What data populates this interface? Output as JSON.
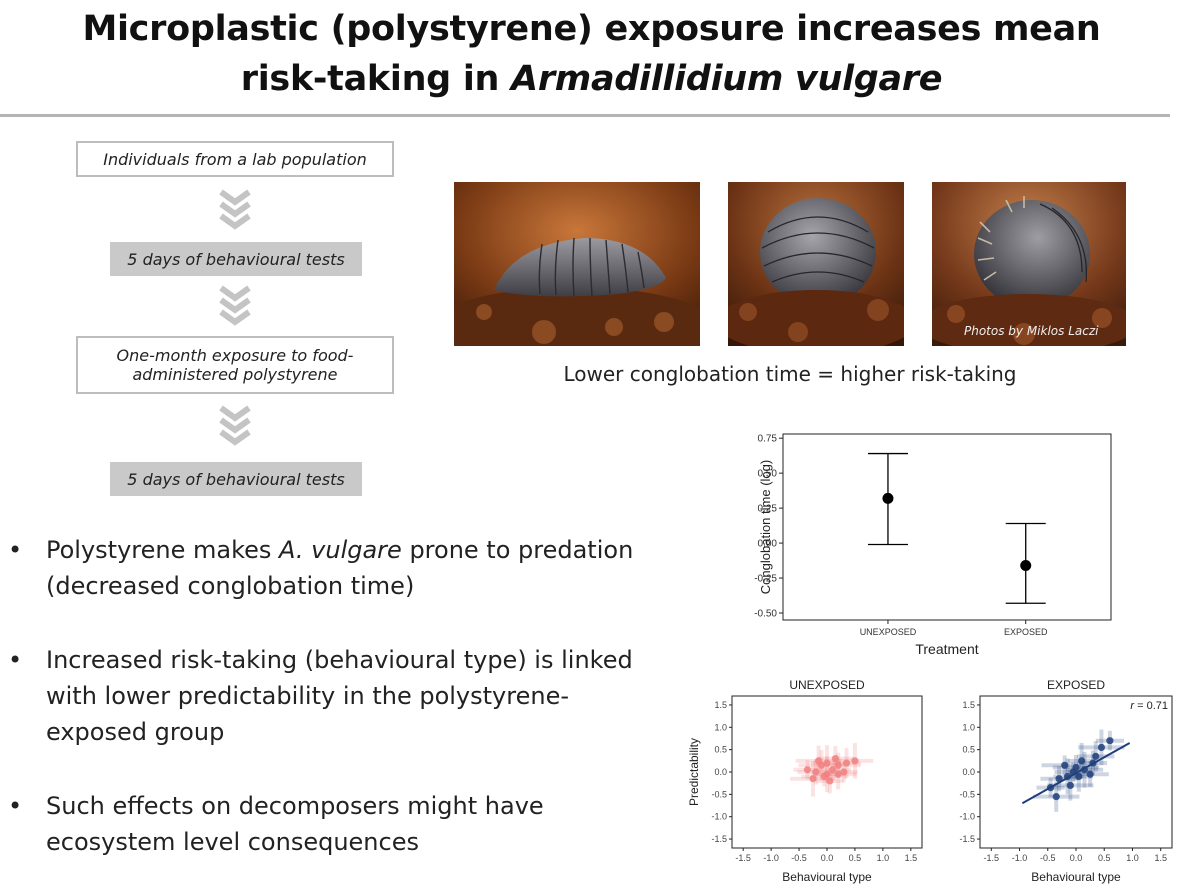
{
  "title": {
    "line1": "Microplastic (polystyrene) exposure increases mean",
    "line2_prefix": "risk-taking in ",
    "line2_species": "Armadillidium vulgare"
  },
  "flow": {
    "step1": "Individuals from a lab population",
    "step2": "5 days of behavioural tests",
    "step3": "One-month exposure to food-administered polystyrene",
    "step4": "5 days of behavioural tests"
  },
  "photos": {
    "credit": "Photos by Miklos Laczi",
    "caption": "Lower conglobation time = higher risk-taking"
  },
  "bullets": [
    {
      "pre": "Polystyrene makes ",
      "italic": "A. vulgare",
      "post": " prone  to predation (decreased conglobation time)"
    },
    {
      "pre": "Increased risk-taking (behavioural type) is linked with lower predictability in the polystyrene-exposed group",
      "italic": "",
      "post": ""
    },
    {
      "pre": "Such effects on decomposers might have ecosystem level consequences",
      "italic": "",
      "post": ""
    }
  ],
  "bullet_symbol": "•",
  "chart_data": [
    {
      "type": "scatter",
      "variant": "point-with-error-bars",
      "xlabel": "Treatment",
      "ylabel": "Conglobation time (log)",
      "categories": [
        "UNEXPOSED",
        "EXPOSED"
      ],
      "values": [
        0.32,
        -0.16
      ],
      "error_low": [
        -0.01,
        -0.43
      ],
      "error_high": [
        0.64,
        0.14
      ],
      "ylim": [
        -0.55,
        0.78
      ],
      "yticks": [
        "0.75",
        "0.50",
        "0.25",
        "0.00",
        "-0.25",
        "-0.50"
      ],
      "ytick_values": [
        0.75,
        0.5,
        0.25,
        0.0,
        -0.25,
        -0.5
      ],
      "grid": false,
      "color": "#000000"
    },
    {
      "type": "scatter",
      "title": "UNEXPOSED",
      "xlabel": "Behavioural type",
      "ylabel": "Predictability",
      "xlim": [
        -1.7,
        1.7
      ],
      "ylim": [
        -1.7,
        1.7
      ],
      "ticks": [
        "-1.5",
        "-1.0",
        "-0.5",
        "0.0",
        "0.5",
        "1.0",
        "1.5"
      ],
      "tick_values": [
        -1.5,
        -1.0,
        -0.5,
        0.0,
        0.5,
        1.0,
        1.5
      ],
      "color": "#f08080",
      "points": [
        {
          "x": -0.35,
          "y": 0.05
        },
        {
          "x": -0.2,
          "y": 0.0
        },
        {
          "x": -0.1,
          "y": 0.15
        },
        {
          "x": 0.0,
          "y": 0.2
        },
        {
          "x": 0.1,
          "y": 0.05
        },
        {
          "x": 0.2,
          "y": 0.15
        },
        {
          "x": 0.35,
          "y": 0.2
        },
        {
          "x": 0.5,
          "y": 0.25
        },
        {
          "x": -0.05,
          "y": -0.1
        },
        {
          "x": 0.05,
          "y": -0.2
        },
        {
          "x": 0.2,
          "y": -0.05
        },
        {
          "x": -0.25,
          "y": -0.15
        },
        {
          "x": 0.3,
          "y": 0.0
        },
        {
          "x": 0.15,
          "y": 0.3
        },
        {
          "x": -0.15,
          "y": 0.25
        },
        {
          "x": 0.0,
          "y": -0.05
        }
      ]
    },
    {
      "type": "scatter",
      "title": "EXPOSED",
      "annotation_r": "r",
      "annotation_value": " = 0.71",
      "xlabel": "Behavioural type",
      "ylabel": "",
      "xlim": [
        -1.7,
        1.7
      ],
      "ylim": [
        -1.7,
        1.7
      ],
      "ticks": [
        "-1.5",
        "-1.0",
        "-0.5",
        "0.0",
        "0.5",
        "1.0",
        "1.5"
      ],
      "tick_values": [
        -1.5,
        -1.0,
        -0.5,
        0.0,
        0.5,
        1.0,
        1.5
      ],
      "color": "#1f3f7a",
      "fit_line": {
        "x0": -0.95,
        "y0": -0.7,
        "x1": 0.95,
        "y1": 0.65
      },
      "points": [
        {
          "x": -0.45,
          "y": -0.35
        },
        {
          "x": -0.3,
          "y": -0.15
        },
        {
          "x": -0.35,
          "y": -0.55
        },
        {
          "x": -0.15,
          "y": -0.1
        },
        {
          "x": -0.05,
          "y": 0.0
        },
        {
          "x": 0.0,
          "y": 0.1
        },
        {
          "x": 0.05,
          "y": -0.1
        },
        {
          "x": 0.15,
          "y": 0.05
        },
        {
          "x": -0.2,
          "y": 0.15
        },
        {
          "x": 0.3,
          "y": 0.2
        },
        {
          "x": 0.35,
          "y": 0.35
        },
        {
          "x": 0.45,
          "y": 0.55
        },
        {
          "x": 0.6,
          "y": 0.7
        },
        {
          "x": 0.25,
          "y": -0.05
        },
        {
          "x": -0.1,
          "y": -0.3
        },
        {
          "x": 0.1,
          "y": 0.25
        }
      ]
    }
  ]
}
